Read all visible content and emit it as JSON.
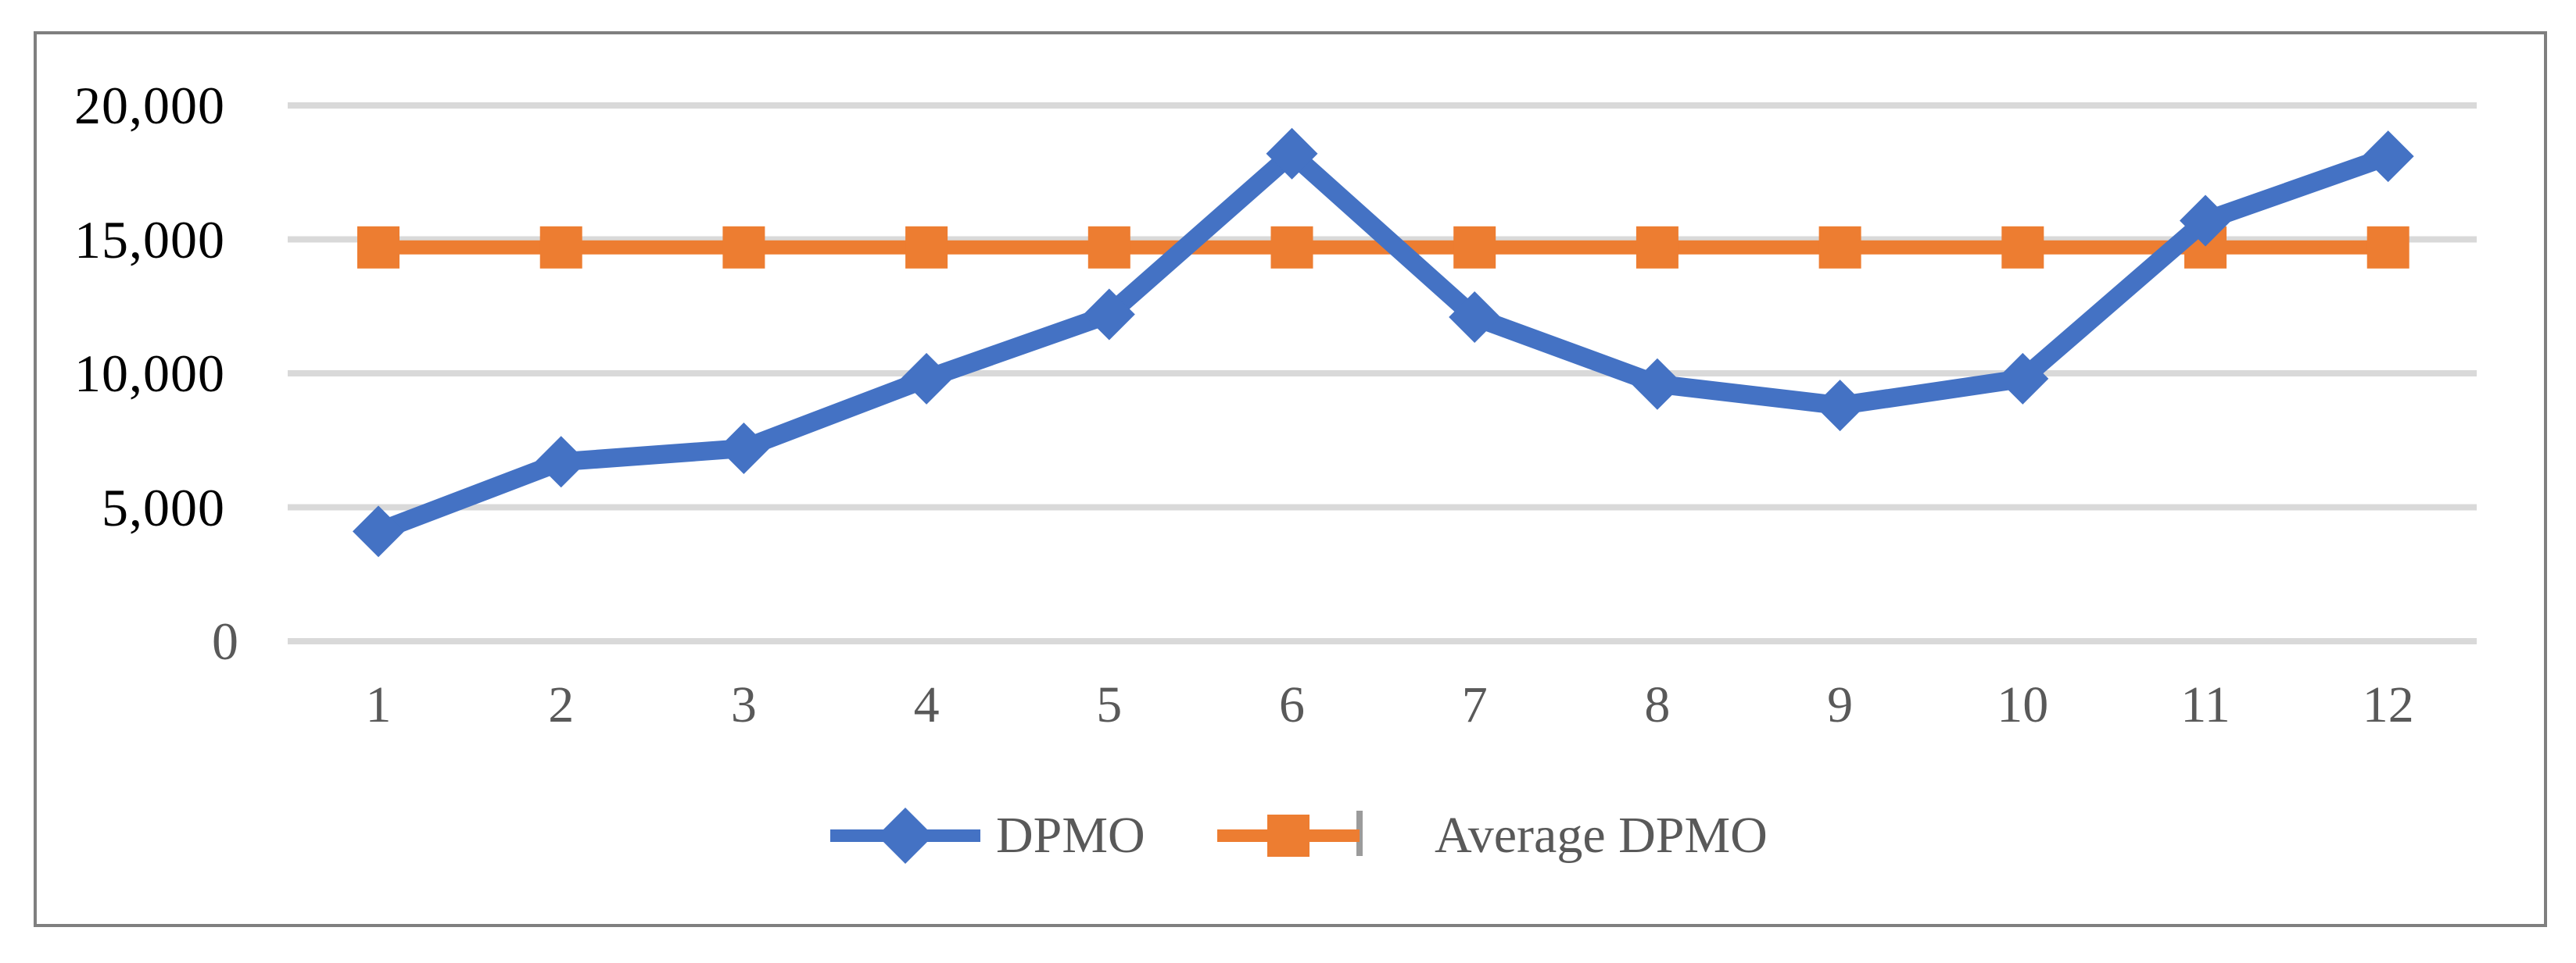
{
  "chart_data": {
    "type": "line",
    "title": "",
    "categories": [
      "1",
      "2",
      "3",
      "4",
      "5",
      "6",
      "7",
      "8",
      "9",
      "10",
      "11",
      "12"
    ],
    "series": [
      {
        "name": "DPMO",
        "color": "#4472C4",
        "marker": "diamond",
        "values": [
          4100,
          6700,
          7200,
          9800,
          12200,
          18200,
          12100,
          9600,
          8800,
          9800,
          15700,
          18100
        ]
      },
      {
        "name": "Average DPMO",
        "color": "#ED7D31",
        "marker": "square",
        "values": [
          14700,
          14700,
          14700,
          14700,
          14700,
          14700,
          14700,
          14700,
          14700,
          14700,
          14700,
          14700
        ]
      }
    ],
    "xlabel": "",
    "ylabel": "",
    "ylim": [
      0,
      20000
    ],
    "yticks": [
      {
        "value": 0,
        "label": "0",
        "color": "#595959"
      },
      {
        "value": 5000,
        "label": "5,000",
        "color": "#000000"
      },
      {
        "value": 10000,
        "label": "10,000",
        "color": "#000000"
      },
      {
        "value": 15000,
        "label": "15,000",
        "color": "#000000"
      },
      {
        "value": 20000,
        "label": "20,000",
        "color": "#000000"
      }
    ],
    "grid": "horizontal-on",
    "legend_position": "bottom-center"
  },
  "legend": {
    "items": [
      {
        "label": "DPMO",
        "color": "#4472C4",
        "marker": "diamond"
      },
      {
        "label": "Average DPMO",
        "color": "#ED7D31",
        "marker": "square"
      }
    ]
  },
  "colors": {
    "background": "#FFFFFF",
    "gridline": "#D9D9D9",
    "frame_border": "#7F7F7F",
    "axis_label_gray": "#595959",
    "axis_label_black": "#000000"
  }
}
